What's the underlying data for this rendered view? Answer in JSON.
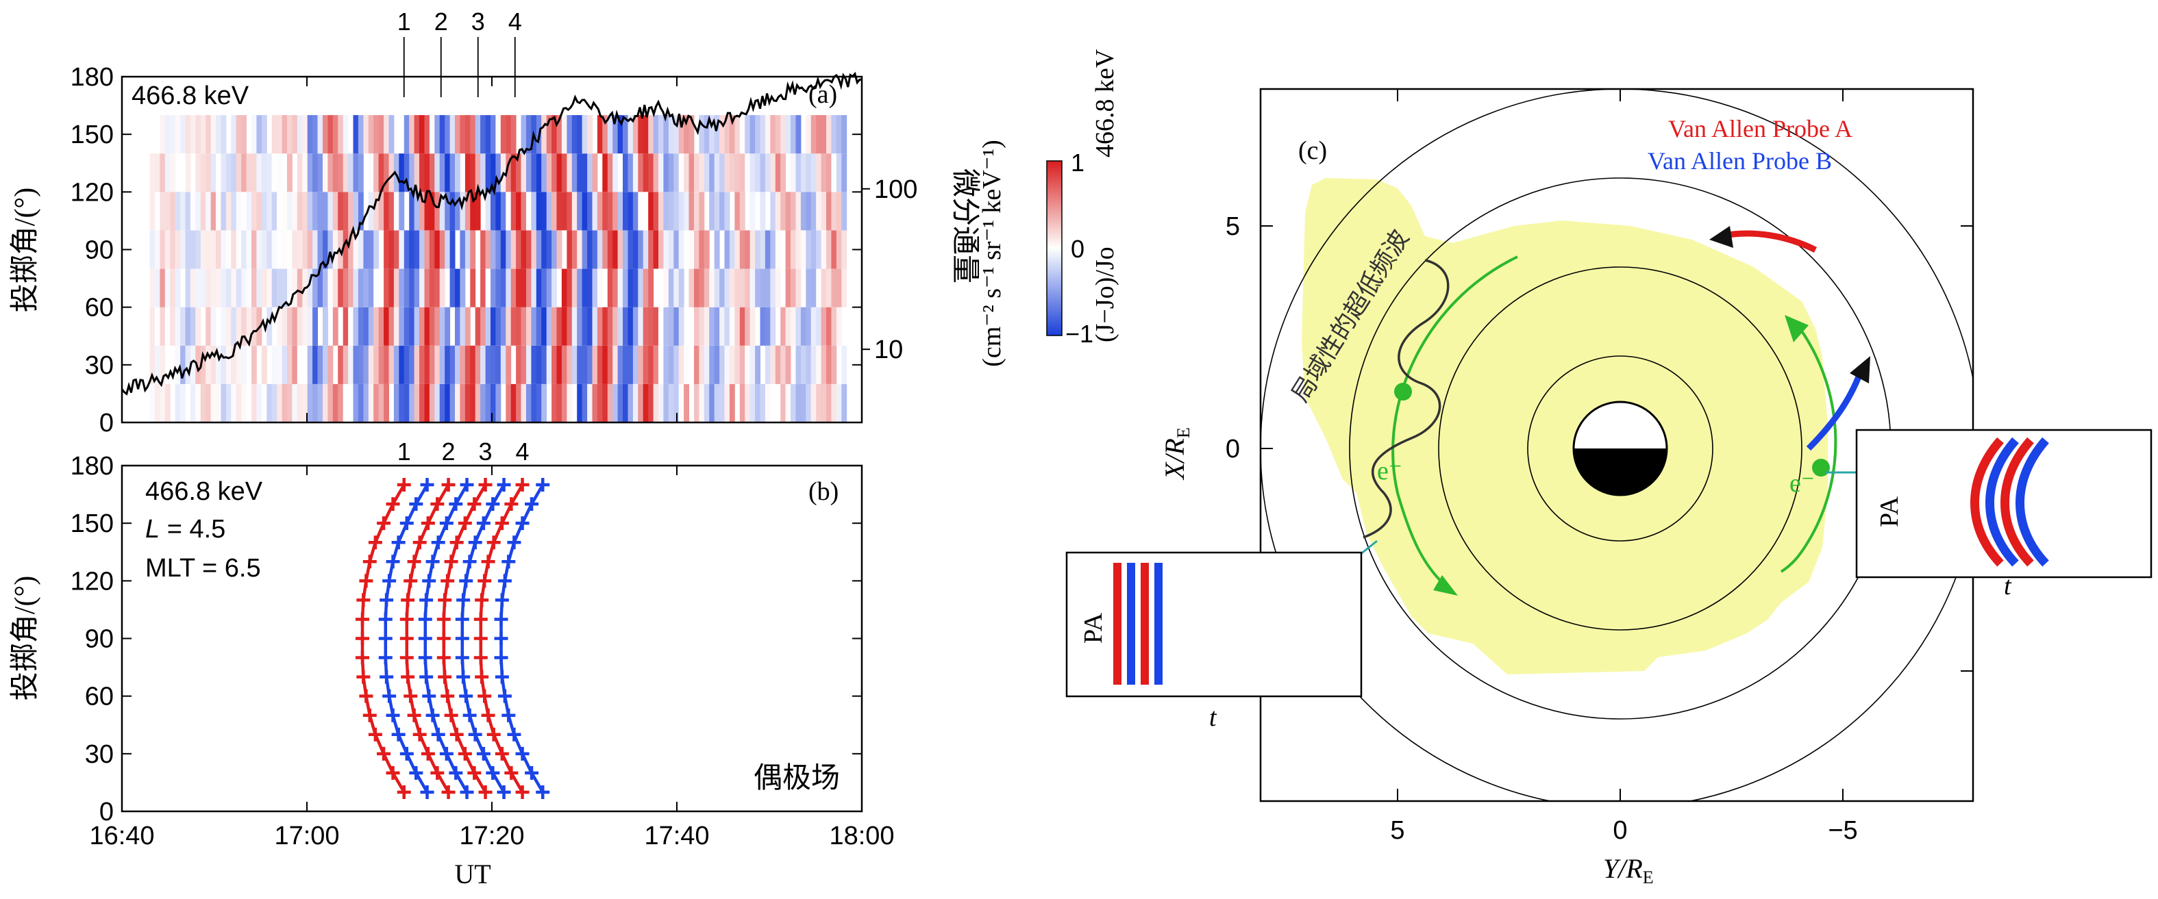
{
  "chart_data": [
    {
      "type": "heatmap",
      "panel_label": "(a)",
      "energy_label": "466.8 keV",
      "ylabel": "投掷角/(°)",
      "right_axis_label": "微分通量",
      "right_axis_units": "(cm⁻² s⁻¹ sr⁻¹ keV⁻¹)",
      "right_ticks": [
        "100",
        "10"
      ],
      "colorbar": {
        "label": "(J−Jo)/Jo",
        "energy": "466.8 keV",
        "range": [
          -1,
          1
        ],
        "ticks": [
          "1",
          "0",
          "−1"
        ],
        "colors": {
          "low": "#1a3fd6",
          "mid": "#ffffff",
          "high": "#d81e1e"
        }
      },
      "x_range_minutes": [
        -20,
        60
      ],
      "yticks": [
        "0",
        "30",
        "60",
        "90",
        "120",
        "150",
        "180"
      ],
      "ylim": [
        0,
        180
      ],
      "markers": [
        "1",
        "2",
        "3",
        "4"
      ],
      "marker_times_minutes": [
        10.5,
        14.5,
        18.5,
        22.5
      ],
      "pitch_bins": [
        10,
        30,
        50,
        70,
        90,
        110,
        130,
        150
      ],
      "flux_trace": {
        "times_minutes": [
          -20,
          -18,
          -16,
          -14,
          -12,
          -10,
          -8,
          -6,
          -4,
          -2,
          0,
          2,
          4,
          6,
          8,
          10,
          12,
          14,
          16,
          18,
          20,
          22,
          24,
          26,
          28,
          30,
          32,
          34,
          36,
          38,
          40,
          42,
          44,
          46,
          48,
          50,
          52,
          54,
          56,
          58,
          60
        ],
        "flux": [
          5.5,
          6,
          6.5,
          7,
          8,
          9,
          10,
          12,
          15,
          20,
          26,
          35,
          45,
          60,
          100,
          120,
          95,
          85,
          80,
          90,
          100,
          140,
          190,
          240,
          300,
          380,
          290,
          260,
          300,
          320,
          270,
          250,
          250,
          280,
          320,
          360,
          400,
          430,
          450,
          470,
          480
        ]
      }
    },
    {
      "type": "line",
      "panel_label": "(b)",
      "energy_label": "466.8 keV",
      "L_label": "L",
      "L_value": "= 4.5",
      "mlt_label": "MLT = 6.5",
      "field_label": "偶极场",
      "ylabel": "投掷角/(°)",
      "xlabel": "UT",
      "xtick_labels": [
        "16:40",
        "17:00",
        "17:20",
        "17:40",
        "18:00"
      ],
      "yticks": [
        "0",
        "30",
        "60",
        "90",
        "120",
        "150",
        "180"
      ],
      "ylim": [
        0,
        180
      ],
      "x_range_minutes": [
        -20,
        60
      ],
      "markers": [
        "1",
        "2",
        "3",
        "4"
      ],
      "pitch_angles": [
        10,
        20,
        30,
        40,
        50,
        60,
        70,
        80,
        90,
        100,
        110,
        120,
        130,
        140,
        150,
        160,
        170
      ],
      "curve_offsets_minutes": [
        0,
        2.5,
        4.8,
        6.8,
        8.8,
        10.8,
        12.8,
        15
      ],
      "series": [
        {
          "color": "#e21b1b",
          "times_minutes": [
            10.5,
            9.3,
            8.3,
            7.4,
            6.8,
            6.4,
            6.1,
            6.0,
            6.0,
            6.0,
            6.1,
            6.4,
            6.8,
            7.4,
            8.3,
            9.3,
            10.5
          ]
        },
        {
          "color": "#1a44e6",
          "times_minutes": [
            13.0,
            11.8,
            10.8,
            9.9,
            9.3,
            8.9,
            8.6,
            8.5,
            8.5,
            8.5,
            8.6,
            8.9,
            9.3,
            9.9,
            10.8,
            11.8,
            13.0
          ]
        },
        {
          "color": "#e21b1b",
          "times_minutes": [
            15.3,
            14.1,
            13.1,
            12.2,
            11.6,
            11.2,
            10.9,
            10.8,
            10.8,
            10.8,
            10.9,
            11.2,
            11.6,
            12.2,
            13.1,
            14.1,
            15.3
          ]
        },
        {
          "color": "#1a44e6",
          "times_minutes": [
            17.3,
            16.1,
            15.1,
            14.2,
            13.6,
            13.2,
            12.9,
            12.8,
            12.8,
            12.8,
            12.9,
            13.2,
            13.6,
            14.2,
            15.1,
            16.1,
            17.3
          ]
        },
        {
          "color": "#e21b1b",
          "times_minutes": [
            19.3,
            18.1,
            17.1,
            16.2,
            15.6,
            15.2,
            14.9,
            14.8,
            14.8,
            14.8,
            14.9,
            15.2,
            15.6,
            16.2,
            17.1,
            18.1,
            19.3
          ]
        },
        {
          "color": "#1a44e6",
          "times_minutes": [
            21.3,
            20.1,
            19.1,
            18.2,
            17.6,
            17.2,
            16.9,
            16.8,
            16.8,
            16.8,
            16.9,
            17.2,
            17.6,
            18.2,
            19.1,
            20.1,
            21.3
          ]
        },
        {
          "color": "#e21b1b",
          "times_minutes": [
            23.3,
            22.1,
            21.1,
            20.2,
            19.6,
            19.2,
            18.9,
            18.8,
            18.8,
            18.8,
            18.9,
            19.2,
            19.6,
            20.2,
            21.1,
            22.1,
            23.3
          ]
        },
        {
          "color": "#1a44e6",
          "times_minutes": [
            25.5,
            24.3,
            23.3,
            22.4,
            21.8,
            21.4,
            21.1,
            21.0,
            21.0,
            21.0,
            21.1,
            21.4,
            21.8,
            22.4,
            23.3,
            24.3,
            25.5
          ]
        }
      ]
    },
    {
      "type": "diagram",
      "panel_label": "(c)",
      "xlabel": "Y/R",
      "xlabel_sub": "E",
      "ylabel": "X/R",
      "ylabel_sub": "E",
      "xtick_labels": [
        "5",
        "0",
        "−5"
      ],
      "ytick_labels": [
        "5",
        "0"
      ],
      "legend": [
        {
          "label": "Van Allen Probe A",
          "color": "#e21b1b"
        },
        {
          "label": "Van Allen Probe B",
          "color": "#1a44e6"
        }
      ],
      "wave_label": "局域性的超低频波",
      "electron_label": "e⁻",
      "electron_color": "#2db82d",
      "region_color": "#f6f8a6",
      "inset_left": {
        "ylabel": "PA",
        "xlabel": "t"
      },
      "inset_right": {
        "ylabel": "PA",
        "xlabel": "t"
      }
    }
  ]
}
